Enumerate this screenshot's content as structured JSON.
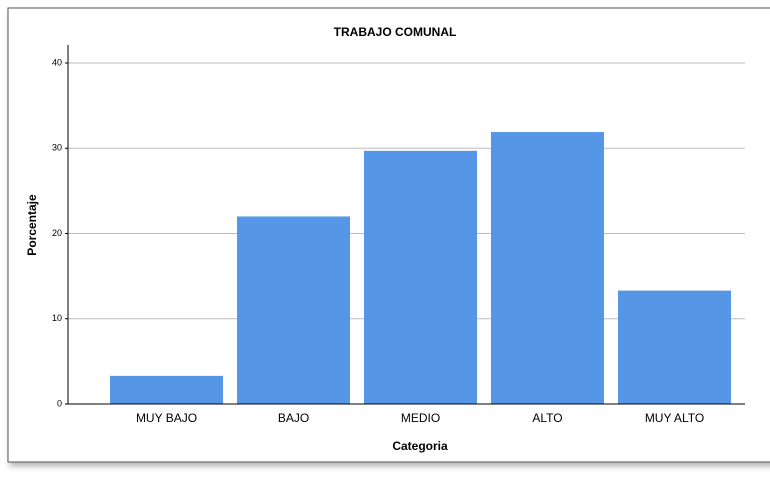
{
  "chart_data": {
    "type": "bar",
    "title": "TRABAJO COMUNAL",
    "x_label": "Categoria",
    "y_label": "Porcentaje",
    "categories": [
      "MUY BAJO",
      "BAJO",
      "MEDIO",
      "ALTO",
      "MUY ALTO"
    ],
    "values": [
      3.3,
      22,
      29.7,
      31.9,
      13.3
    ],
    "color": "#5596e6",
    "ylim": [
      0,
      40
    ],
    "yticks": [
      0,
      10,
      20,
      30,
      40
    ],
    "grid": true
  }
}
